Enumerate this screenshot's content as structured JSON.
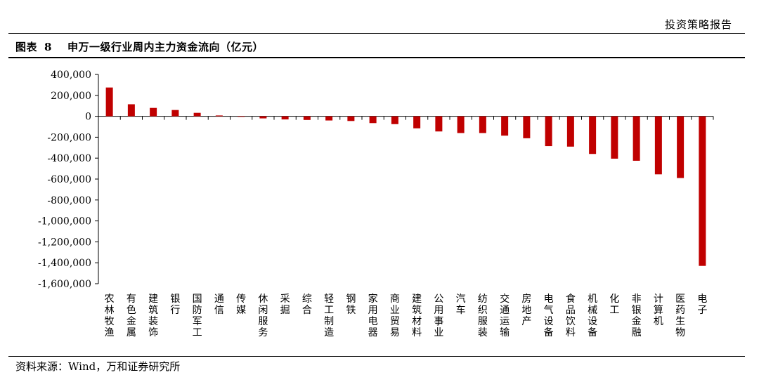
{
  "header": {
    "report_label": "投资策略报告"
  },
  "figure": {
    "label": "图表",
    "number": "8",
    "title": "申万一级行业周内主力资金流向（亿元）"
  },
  "footer": {
    "source": "资料来源：Wind，万和证券研究所"
  },
  "colors": {
    "bar": "#c00000",
    "axis": "#000000"
  },
  "chart_data": {
    "type": "bar",
    "title": "",
    "xlabel": "",
    "ylabel": "",
    "ylim": [
      -1600000,
      400000
    ],
    "yticks": [
      400000,
      200000,
      0,
      -200000,
      -400000,
      -600000,
      -800000,
      -1000000,
      -1200000,
      -1400000,
      -1600000
    ],
    "ytick_labels": [
      "400,000",
      "200,000",
      "0",
      "-200,000",
      "-400,000",
      "-600,000",
      "-800,000",
      "-1,000,000",
      "-1,200,000",
      "-1,400,000",
      "-1,600,000"
    ],
    "grid": false,
    "legend": "none",
    "categories": [
      "农林牧渔",
      "有色金属",
      "建筑装饰",
      "银行",
      "国防军工",
      "通信",
      "传媒",
      "休闲服务",
      "采掘",
      "综合",
      "轻工制造",
      "钢铁",
      "家用电器",
      "商业贸易",
      "建筑材料",
      "公用事业",
      "汽车",
      "纺织服装",
      "交通运输",
      "房地产",
      "电气设备",
      "食品饮料",
      "机械设备",
      "化工",
      "非银金融",
      "计算机",
      "医药生物",
      "电子"
    ],
    "values": [
      275000,
      115000,
      80000,
      60000,
      33000,
      8000,
      -5000,
      -20000,
      -30000,
      -35000,
      -40000,
      -45000,
      -65000,
      -75000,
      -115000,
      -145000,
      -160000,
      -160000,
      -185000,
      -210000,
      -285000,
      -290000,
      -360000,
      -405000,
      -425000,
      -555000,
      -590000,
      -1430000
    ]
  }
}
